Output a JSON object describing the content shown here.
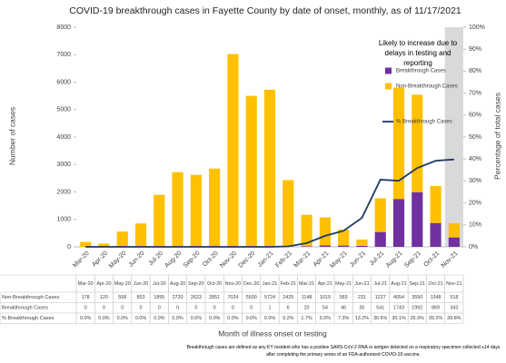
{
  "chart_data": {
    "type": "bar",
    "stacked": true,
    "title": "COVID-19 breakthrough cases in Fayette County by date of onset, monthly, as of 11/17/2021",
    "x_label": "Month of illness onset or testing",
    "y_label": "Number of cases",
    "y2_label": "Percentage of total cases",
    "annotation": "Likely to increase due to delays in testing and reporting",
    "footnote": "Breakthrough cases are defined as any KY resident who has a positive SARS-CoV-2 RNA or antigen detected on a respiratory specimen collected ≥14 days after completing the primary series of an FDA-authorized COVID-19 vaccine.",
    "categories": [
      "Mar-20",
      "Apr-20",
      "May-20",
      "Jun-20",
      "Jul-20",
      "Aug-20",
      "Sep-20",
      "Oct-20",
      "Nov-20",
      "Dec-20",
      "Jan-21",
      "Feb-21",
      "Mar-21",
      "Apr-21",
      "May-21",
      "Jun-21",
      "Jul-21",
      "Aug-21",
      "Sep-21",
      "Oct-21",
      "Nov-21"
    ],
    "series": [
      {
        "name": "Breakthrough Cases",
        "color": "#7030a0",
        "type": "bar",
        "values": [
          0,
          0,
          0,
          0,
          0,
          0,
          0,
          0,
          0,
          0,
          1,
          6,
          20,
          54,
          46,
          35,
          541,
          1743,
          1992,
          869,
          343
        ]
      },
      {
        "name": "Non-Breakthrough Cases",
        "color": "#ffc000",
        "type": "bar",
        "values": [
          178,
          120,
          558,
          853,
          1895,
          2720,
          2623,
          2851,
          7024,
          5500,
          5724,
          2425,
          1148,
          1019,
          583,
          231,
          1227,
          4054,
          3550,
          1348,
          518
        ]
      },
      {
        "name": "% Breakthrough Cases",
        "color": "#1f3864",
        "type": "line",
        "axis": "y2",
        "values": [
          0,
          0,
          0,
          0,
          0,
          0,
          0,
          0,
          0,
          0,
          0,
          0.2,
          1.7,
          5.0,
          7.3,
          13.2,
          30.6,
          30.1,
          35.9,
          39.2,
          39.8
        ],
        "value_labels": [
          "0.0%",
          "0.0%",
          "0.0%",
          "0.0%",
          "0.0%",
          "0.0%",
          "0.0%",
          "0.0%",
          "0.0%",
          "0.0%",
          "0.0%",
          "0.2%",
          "1.7%",
          "5.0%",
          "7.3%",
          "13.2%",
          "30.6%",
          "30.1%",
          "35.9%",
          "39.2%",
          "39.8%"
        ]
      }
    ],
    "ylim": [
      0,
      8000
    ],
    "yticks": [
      0,
      1000,
      2000,
      3000,
      4000,
      5000,
      6000,
      7000,
      8000
    ],
    "y2lim": [
      0,
      100
    ],
    "y2ticks": [
      {
        "value": 0,
        "label": "0%"
      },
      {
        "value": 10,
        "label": "10%"
      },
      {
        "value": 20,
        "label": "20%"
      },
      {
        "value": 30,
        "label": "30%"
      },
      {
        "value": 40,
        "label": "40%"
      },
      {
        "value": 50,
        "label": "50%"
      },
      {
        "value": 60,
        "label": "60%"
      },
      {
        "value": 70,
        "label": "70%"
      },
      {
        "value": 80,
        "label": "80%"
      },
      {
        "value": 90,
        "label": "90%"
      },
      {
        "value": 100,
        "label": "100%"
      }
    ],
    "grid": false,
    "legend": "right"
  }
}
